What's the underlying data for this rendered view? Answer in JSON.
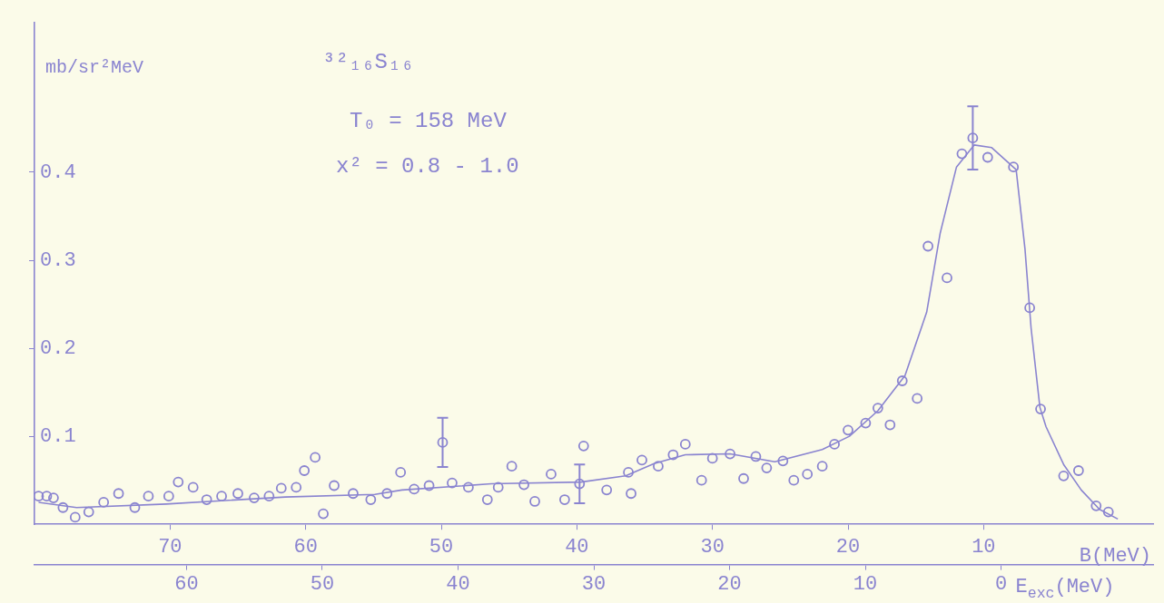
{
  "chart_data": {
    "type": "scatter",
    "ylabel": "mb/sr²MeV",
    "xlabel": "B(MeV)",
    "x2label": "E$_{exc}$(MeV)",
    "annotations": [
      "³²₁₆S₁₆",
      "T₀ = 158 MeV",
      "x² = 0.8 - 1.0"
    ],
    "xlim": [
      80,
      -2.5
    ],
    "xticks": [
      70,
      60,
      50,
      40,
      30,
      20,
      10
    ],
    "x2lim": [
      71.2,
      -11.2
    ],
    "x2ticks": [
      60,
      50,
      40,
      30,
      20,
      10,
      0
    ],
    "ylim": [
      0,
      0.57
    ],
    "yticks": [
      0.1,
      0.2,
      0.3,
      0.4
    ],
    "grid": false,
    "legend": false,
    "marker": "circle",
    "series": [
      {
        "type": "scatter",
        "color": "#8a84d0",
        "x": [
          79.7,
          79.1,
          78.6,
          77.9,
          77.0,
          76.0,
          74.9,
          73.8,
          72.6,
          71.6,
          70.1,
          69.4,
          68.3,
          67.3,
          66.2,
          65.0,
          63.8,
          62.7,
          61.8,
          60.7,
          60.1,
          59.3,
          58.7,
          57.9,
          56.5,
          55.2,
          54.0,
          53.0,
          52.0,
          50.9,
          49.9,
          49.2,
          48.0,
          46.6,
          45.8,
          44.8,
          43.9,
          43.1,
          41.9,
          40.9,
          39.8,
          39.5,
          37.8,
          36.2,
          36.0,
          35.2,
          34.0,
          32.9,
          32.0,
          30.8,
          30.0,
          28.7,
          27.7,
          26.8,
          26.0,
          24.8,
          24.0,
          23.0,
          21.9,
          21.0,
          20.0,
          18.7,
          17.8,
          16.9,
          16.0,
          14.9,
          14.1,
          12.7,
          11.6,
          10.8,
          9.7,
          7.8,
          6.6,
          5.8,
          4.1,
          3.0,
          1.7,
          0.8
        ],
        "values": [
          0.032,
          0.032,
          0.03,
          0.019,
          0.008,
          0.014,
          0.025,
          0.035,
          0.019,
          0.032,
          0.032,
          0.048,
          0.042,
          0.028,
          0.032,
          0.035,
          0.03,
          0.032,
          0.041,
          0.042,
          0.061,
          0.076,
          0.012,
          0.044,
          0.035,
          0.028,
          0.035,
          0.059,
          0.04,
          0.044,
          0.093,
          0.047,
          0.042,
          0.028,
          0.042,
          0.066,
          0.045,
          0.026,
          0.057,
          0.028,
          0.046,
          0.089,
          0.039,
          0.059,
          0.035,
          0.073,
          0.066,
          0.079,
          0.091,
          0.05,
          0.075,
          0.08,
          0.052,
          0.077,
          0.064,
          0.072,
          0.05,
          0.057,
          0.066,
          0.091,
          0.107,
          0.115,
          0.132,
          0.113,
          0.163,
          0.143,
          0.316,
          0.28,
          0.421,
          0.439,
          0.417,
          0.406,
          0.246,
          0.131,
          0.055,
          0.061,
          0.021,
          0.014
        ],
        "errors": [
          null,
          null,
          null,
          null,
          null,
          null,
          null,
          null,
          null,
          null,
          null,
          null,
          null,
          null,
          null,
          null,
          null,
          null,
          null,
          null,
          null,
          null,
          null,
          null,
          null,
          null,
          null,
          null,
          null,
          null,
          0.028,
          null,
          null,
          null,
          null,
          null,
          null,
          null,
          null,
          null,
          0.022,
          null,
          null,
          null,
          null,
          null,
          null,
          null,
          null,
          null,
          null,
          null,
          null,
          null,
          null,
          null,
          null,
          null,
          null,
          null,
          null,
          null,
          null,
          null,
          null,
          null,
          null,
          null,
          null,
          0.036,
          null,
          null,
          null,
          null,
          null,
          null,
          null,
          null
        ]
      },
      {
        "type": "line",
        "color": "#8a84d0",
        "marker": "none",
        "line_style": "solid",
        "x": [
          79.7,
          76.9,
          70.3,
          61.5,
          54.9,
          52.9,
          46.3,
          39.7,
          36.4,
          34.3,
          32.0,
          28.7,
          25.4,
          21.9,
          19.9,
          17.8,
          15.8,
          14.2,
          13.2,
          12.0,
          10.7,
          9.4,
          7.6,
          6.95,
          6.5,
          5.85,
          5.4,
          4.1,
          2.8,
          1.45,
          0.1
        ],
        "values": [
          0.025,
          0.019,
          0.023,
          0.031,
          0.034,
          0.039,
          0.046,
          0.048,
          0.055,
          0.069,
          0.079,
          0.08,
          0.071,
          0.085,
          0.1,
          0.129,
          0.169,
          0.241,
          0.331,
          0.406,
          0.431,
          0.428,
          0.403,
          0.313,
          0.223,
          0.133,
          0.111,
          0.068,
          0.039,
          0.017,
          0.006
        ]
      }
    ]
  }
}
